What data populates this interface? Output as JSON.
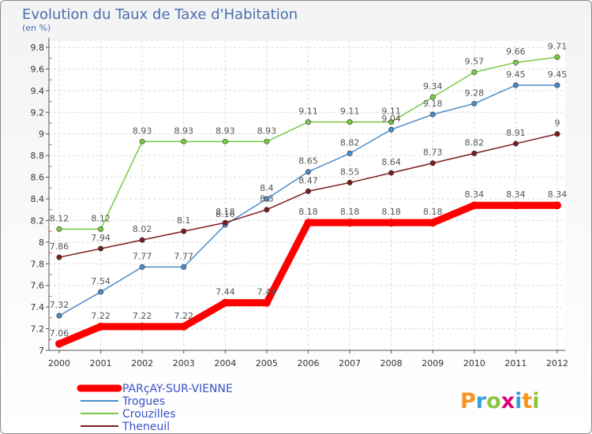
{
  "chart_data": {
    "type": "line",
    "title": "Evolution du Taux de Taxe d'Habitation",
    "subtitle": "(en %)",
    "xlabel": "",
    "ylabel": "",
    "x": [
      "2000",
      "2001",
      "2002",
      "2003",
      "2004",
      "2005",
      "2006",
      "2007",
      "2008",
      "2009",
      "2010",
      "2011",
      "2012"
    ],
    "ylim": [
      7,
      9.8
    ],
    "yticks": [
      7,
      7.2,
      7.4,
      7.6,
      7.8,
      8,
      8.2,
      8.4,
      8.6,
      8.8,
      9,
      9.2,
      9.4,
      9.6,
      9.8
    ],
    "ytick_labels": [
      "7",
      "7.2",
      "7.4",
      "7.6",
      "7.8",
      "8",
      "8.2",
      "8.4",
      "8.6",
      "8.8",
      "9",
      "9.2",
      "9.4",
      "9.6",
      "9.8"
    ],
    "grid": true,
    "legend_position": "bottom-left",
    "series": [
      {
        "name": "PARçAY-SUR-VIENNE",
        "color": "#ff0000",
        "values": [
          7.06,
          7.22,
          7.22,
          7.22,
          7.44,
          7.44,
          8.18,
          8.18,
          8.18,
          8.18,
          8.34,
          8.34,
          8.34
        ],
        "labels": [
          "7.06",
          "7.22",
          "7.22",
          "7.22",
          "7.44",
          "7.44",
          "8.18",
          "8.18",
          "8.18",
          "8.18",
          "8.34",
          "8.34",
          "8.34"
        ]
      },
      {
        "name": "Trogues",
        "color": "#4a8cc8",
        "values": [
          7.32,
          7.54,
          7.77,
          7.77,
          8.16,
          8.4,
          8.65,
          8.82,
          9.04,
          9.18,
          9.28,
          9.45,
          9.45
        ],
        "labels": [
          "7.32",
          "7.54",
          "7.77",
          "7.77",
          "8.16",
          "8.4",
          "8.65",
          "8.82",
          "9.04",
          "9.18",
          "9.28",
          "9.45",
          "9.45"
        ]
      },
      {
        "name": "Crouzilles",
        "color": "#7ac943",
        "values": [
          8.12,
          8.12,
          8.93,
          8.93,
          8.93,
          8.93,
          9.11,
          9.11,
          9.11,
          9.34,
          9.57,
          9.66,
          9.71
        ],
        "labels": [
          "8.12",
          "8.12",
          "8.93",
          "8.93",
          "8.93",
          "8.93",
          "9.11",
          "9.11",
          "9.11",
          "9.34",
          "9.57",
          "9.66",
          "9.71"
        ]
      },
      {
        "name": "Theneuil",
        "color": "#7b1c1c",
        "values": [
          7.86,
          7.94,
          8.02,
          8.1,
          8.18,
          8.3,
          8.47,
          8.55,
          8.64,
          8.73,
          8.82,
          8.91,
          9
        ],
        "labels": [
          "7.86",
          "7.94",
          "8.02",
          "8.1",
          "8.18",
          "8.3",
          "8.47",
          "8.55",
          "8.64",
          "8.73",
          "8.82",
          "8.91",
          "9"
        ]
      }
    ]
  },
  "logo": {
    "text": "Proxiti",
    "colors": [
      "#f7941d",
      "#3aa0d8",
      "#8cc63f",
      "#e2007a",
      "#3aa0d8",
      "#f7941d",
      "#8cc63f"
    ]
  }
}
